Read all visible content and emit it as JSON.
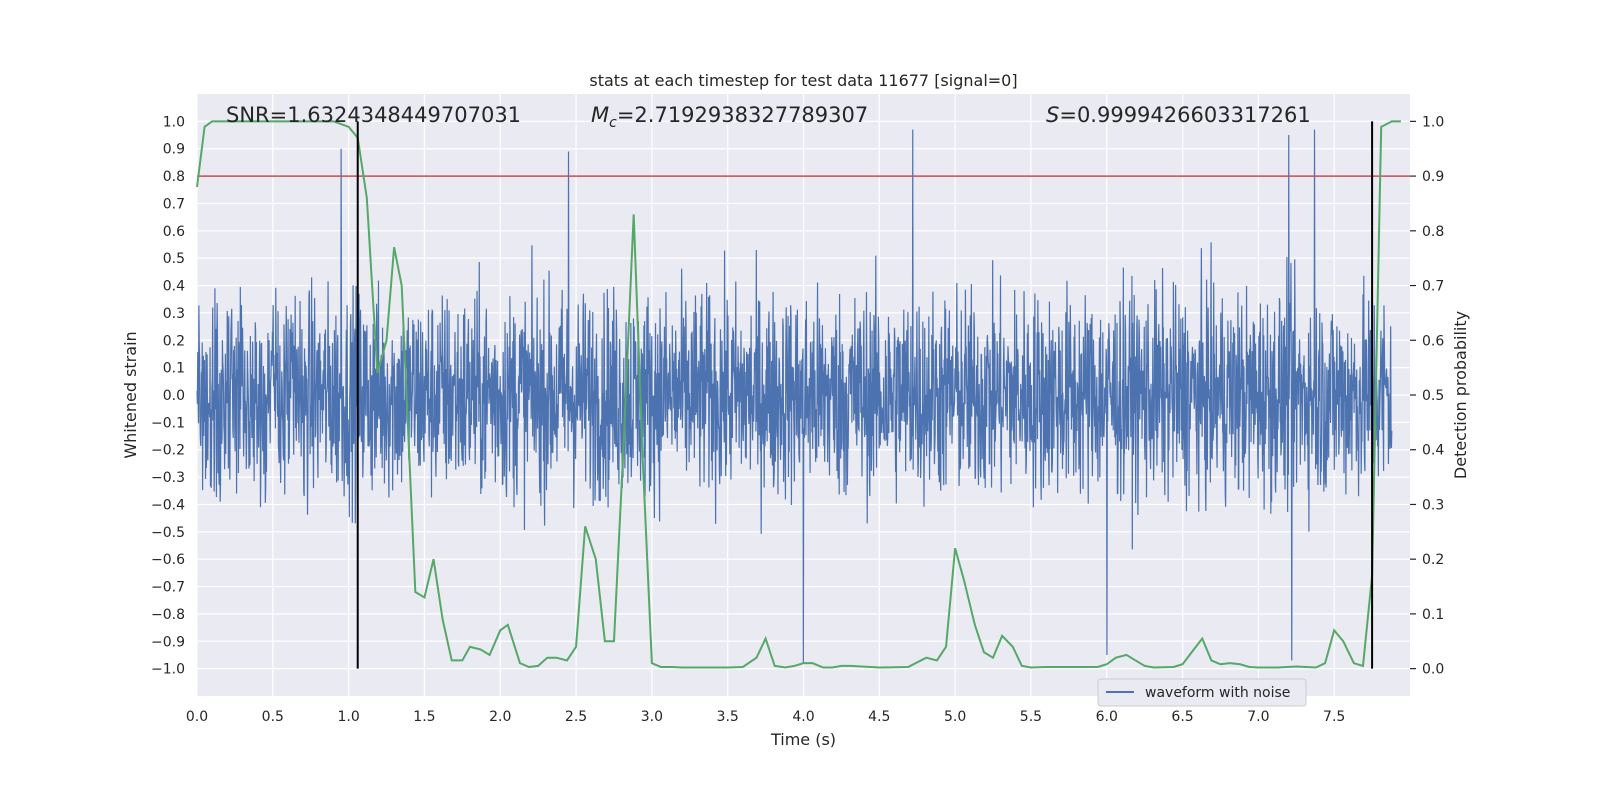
{
  "chart_data": {
    "type": "line",
    "title": "stats at each timestep for test data 11677 [signal=0]",
    "xlabel": "Time (s)",
    "ylabel_left": "Whitened strain",
    "ylabel_right": "Detection probability",
    "xlim": [
      0.0,
      8.0
    ],
    "ylim_left": [
      -1.1,
      1.1
    ],
    "ylim_right": [
      -0.05,
      1.05
    ],
    "x_ticks": [
      0.0,
      0.5,
      1.0,
      1.5,
      2.0,
      2.5,
      3.0,
      3.5,
      4.0,
      4.5,
      5.0,
      5.5,
      6.0,
      6.5,
      7.0,
      7.5
    ],
    "y_ticks_left": [
      1.0,
      0.9,
      0.8,
      0.7,
      0.6,
      0.5,
      0.4,
      0.3,
      0.2,
      0.1,
      0.0,
      -0.1,
      -0.2,
      -0.3,
      -0.4,
      -0.5,
      -0.6,
      -0.7,
      -0.8,
      -0.9,
      -1.0
    ],
    "y_ticks_right": [
      1.0,
      0.9,
      0.8,
      0.7,
      0.6,
      0.5,
      0.4,
      0.3,
      0.2,
      0.1,
      0.0
    ],
    "annotations": {
      "snr": "SNR=1.6324348449707031",
      "mc_symbol": "M",
      "mc_sub": "c",
      "mc_value": "=2.7192938327789307",
      "s_symbol": "S",
      "s_value": "=0.9999426603317261"
    },
    "threshold": {
      "axis": "right",
      "value": 0.9,
      "color": "#c44e52"
    },
    "vertical_lines": [
      1.06,
      7.75
    ],
    "legend": {
      "entries": [
        "waveform with noise"
      ],
      "location": "lower right"
    },
    "waveform": {
      "name": "waveform with noise",
      "axis": "left",
      "color": "#4c72b0",
      "description": "dense whitened-strain noise, amplitude typically within ±0.4 with spikes to about ±0.95",
      "band_upper": 0.4,
      "band_lower": -0.4,
      "peaks": [
        [
          0.95,
          0.9
        ],
        [
          2.45,
          0.89
        ],
        [
          4.72,
          0.97
        ],
        [
          7.2,
          0.95
        ],
        [
          7.37,
          0.97
        ],
        [
          4.0,
          -0.98
        ],
        [
          6.0,
          -0.95
        ],
        [
          7.22,
          -0.97
        ]
      ]
    },
    "probability_series": {
      "name": "detection probability",
      "axis": "right",
      "color": "#55a868",
      "x": [
        0.0,
        0.05,
        0.1,
        0.2,
        0.3,
        0.5,
        0.7,
        0.9,
        1.0,
        1.06,
        1.12,
        1.19,
        1.25,
        1.3,
        1.35,
        1.44,
        1.5,
        1.56,
        1.62,
        1.68,
        1.75,
        1.8,
        1.87,
        1.93,
        2.0,
        2.05,
        2.13,
        2.19,
        2.25,
        2.31,
        2.37,
        2.44,
        2.5,
        2.56,
        2.63,
        2.69,
        2.75,
        2.81,
        2.88,
        2.94,
        3.0,
        3.06,
        3.13,
        3.2,
        3.3,
        3.4,
        3.5,
        3.6,
        3.69,
        3.75,
        3.81,
        3.88,
        3.94,
        4.0,
        4.06,
        4.13,
        4.19,
        4.25,
        4.31,
        4.5,
        4.69,
        4.81,
        4.88,
        4.94,
        5.0,
        5.06,
        5.13,
        5.19,
        5.25,
        5.31,
        5.38,
        5.44,
        5.5,
        5.6,
        5.8,
        5.94,
        6.0,
        6.06,
        6.13,
        6.19,
        6.25,
        6.31,
        6.44,
        6.5,
        6.56,
        6.63,
        6.69,
        6.75,
        6.81,
        6.88,
        6.94,
        7.0,
        7.13,
        7.25,
        7.38,
        7.44,
        7.5,
        7.56,
        7.63,
        7.69,
        7.75,
        7.81,
        7.88,
        7.94
      ],
      "y": [
        0.88,
        0.99,
        1.0,
        1.0,
        1.0,
        1.0,
        1.0,
        1.0,
        0.99,
        0.97,
        0.86,
        0.54,
        0.6,
        0.77,
        0.7,
        0.14,
        0.13,
        0.2,
        0.09,
        0.015,
        0.015,
        0.04,
        0.035,
        0.025,
        0.07,
        0.08,
        0.01,
        0.003,
        0.005,
        0.02,
        0.02,
        0.015,
        0.04,
        0.26,
        0.2,
        0.05,
        0.05,
        0.39,
        0.83,
        0.38,
        0.01,
        0.003,
        0.003,
        0.002,
        0.002,
        0.002,
        0.002,
        0.003,
        0.02,
        0.055,
        0.005,
        0.002,
        0.005,
        0.01,
        0.01,
        0.002,
        0.002,
        0.005,
        0.005,
        0.002,
        0.003,
        0.02,
        0.015,
        0.04,
        0.22,
        0.16,
        0.08,
        0.03,
        0.02,
        0.06,
        0.04,
        0.005,
        0.002,
        0.003,
        0.003,
        0.003,
        0.008,
        0.02,
        0.025,
        0.015,
        0.005,
        0.002,
        0.003,
        0.008,
        0.03,
        0.055,
        0.015,
        0.008,
        0.01,
        0.008,
        0.003,
        0.002,
        0.002,
        0.004,
        0.002,
        0.01,
        0.07,
        0.05,
        0.01,
        0.005,
        0.17,
        0.99,
        1.0,
        1.0
      ]
    }
  }
}
